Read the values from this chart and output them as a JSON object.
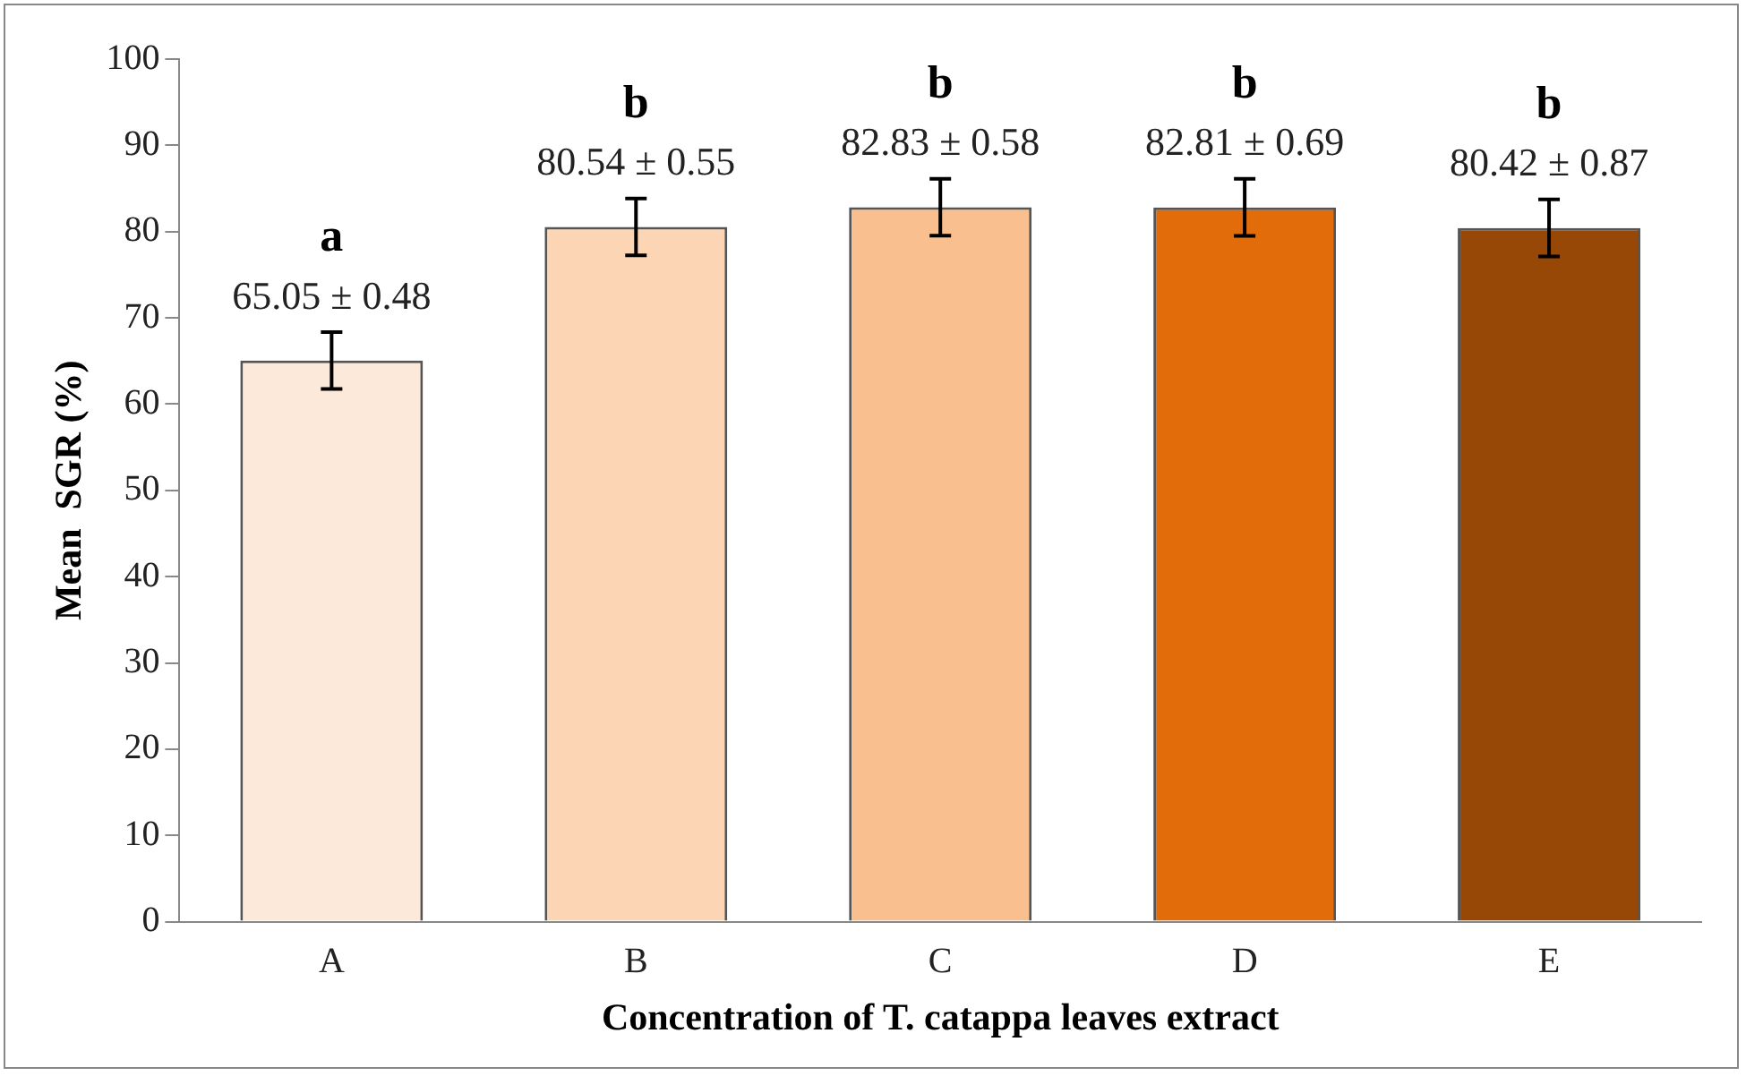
{
  "chart_data": {
    "type": "bar",
    "xlabel": "Concentration of T. catappa leaves extract",
    "ylabel": "Mean  SGR (%)",
    "categories": [
      "A",
      "B",
      "C",
      "D",
      "E"
    ],
    "values": [
      65.05,
      80.54,
      82.83,
      82.81,
      80.42
    ],
    "colors": [
      "#fde9d9",
      "#fcd5b4",
      "#fabf8f",
      "#e26b0a",
      "#974706"
    ],
    "errors": [
      3.3,
      3.3,
      3.3,
      3.3,
      3.3
    ],
    "value_labels": [
      "65.05 ± 0.48",
      "80.54 ± 0.55",
      "82.83 ± 0.58",
      "82.81 ± 0.69",
      "80.42 ± 0.87"
    ],
    "annotations": [
      "a",
      "b",
      "b",
      "b",
      "b"
    ],
    "ylim": [
      0,
      100
    ],
    "yticks": [
      0,
      10,
      20,
      30,
      40,
      50,
      60,
      70,
      80,
      90,
      100
    ],
    "grid": false,
    "legend": false
  }
}
